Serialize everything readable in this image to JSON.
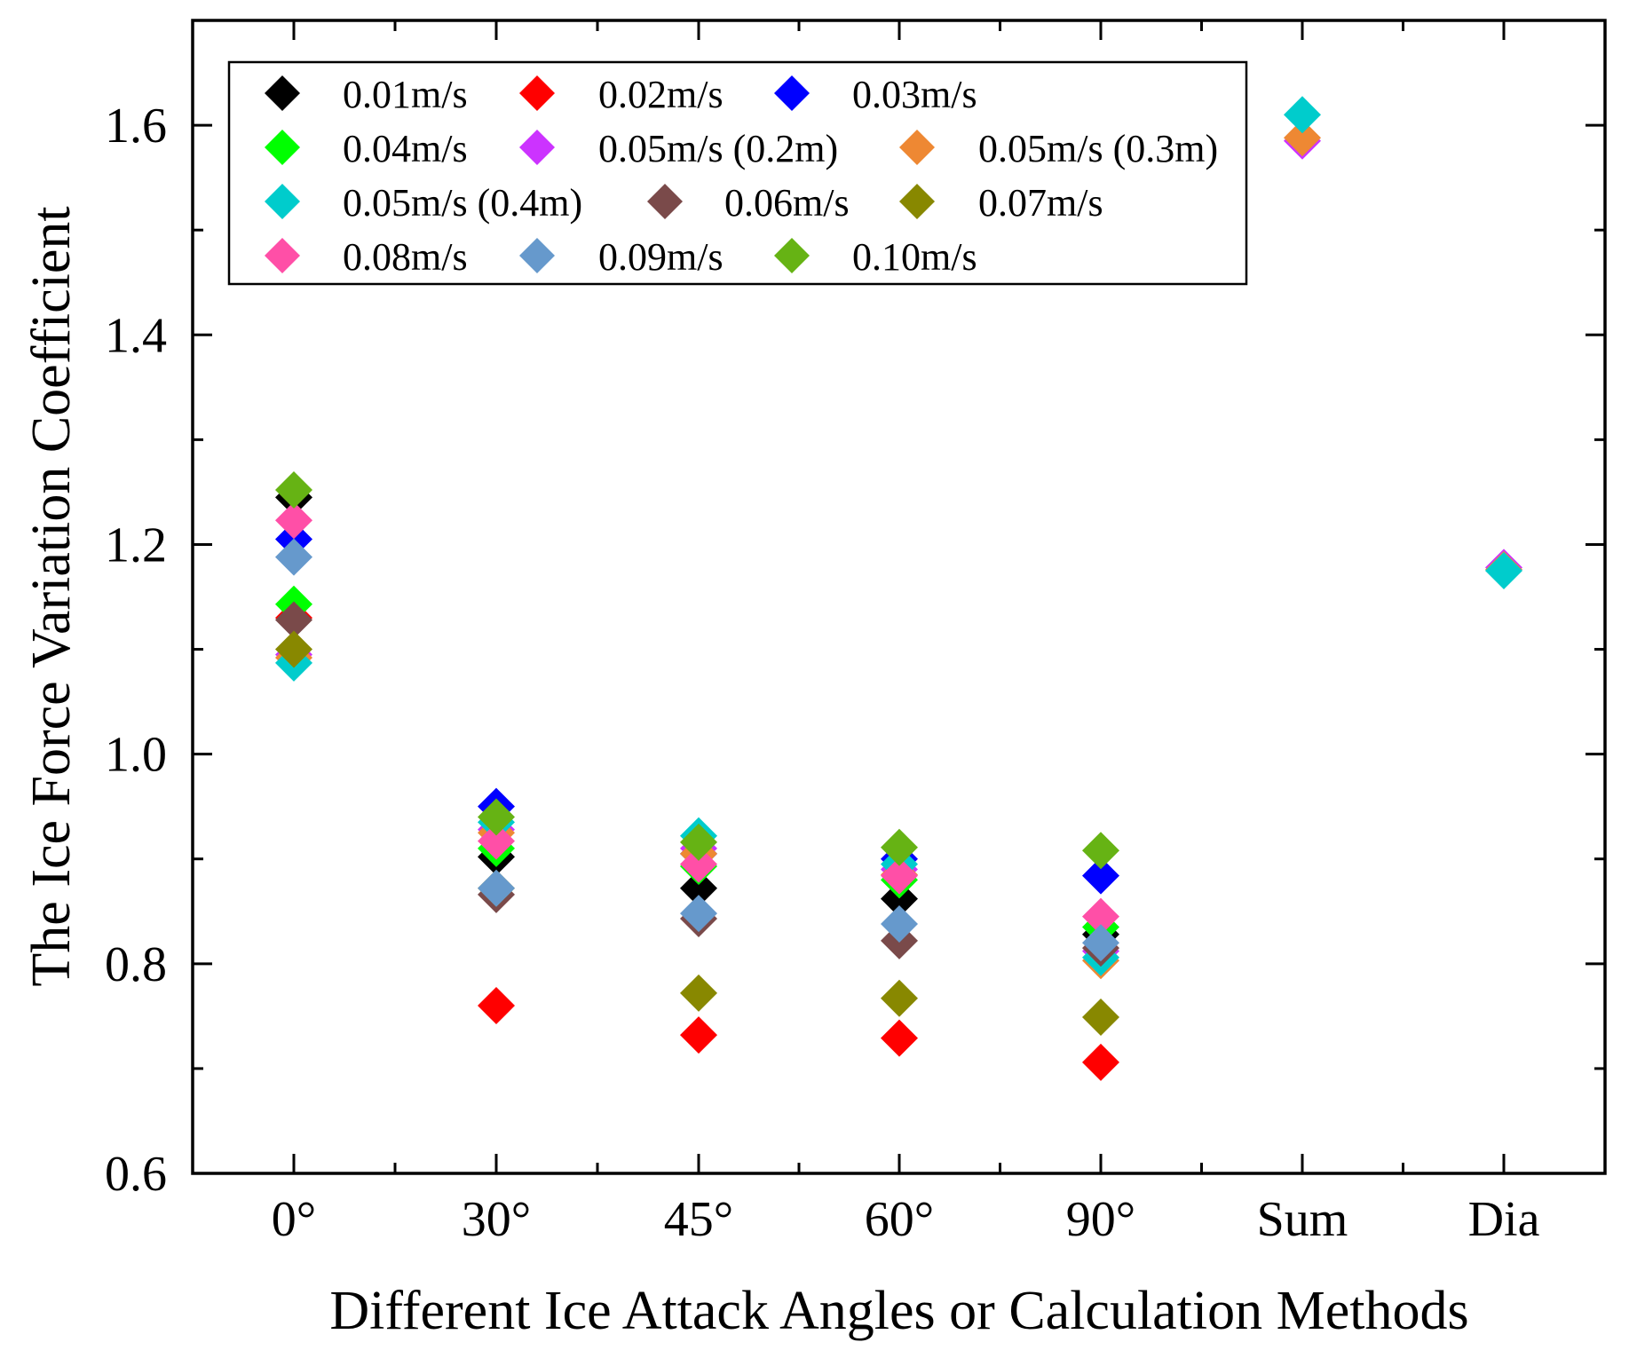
{
  "chart_data": {
    "type": "scatter",
    "ylabel": "The Ice Force Variation Coefficient",
    "xlabel": "Different Ice Attack Angles or Calculation Methods",
    "categories": [
      "0°",
      "30°",
      "45°",
      "60°",
      "90°",
      "Sum",
      "Dia"
    ],
    "ylim": [
      0.6,
      1.7
    ],
    "yticks": [
      "0.6",
      "0.8",
      "1.0",
      "1.2",
      "1.4",
      "1.6"
    ],
    "marker": "diamond",
    "legend_position": "top-left",
    "series": [
      {
        "name": "0.01m/s",
        "color": "#000000",
        "values": [
          1.245,
          0.902,
          0.872,
          0.862,
          0.828,
          null,
          null
        ]
      },
      {
        "name": "0.02m/s",
        "color": "#ff0000",
        "values": [
          1.13,
          0.76,
          0.732,
          0.729,
          0.706,
          null,
          null
        ]
      },
      {
        "name": "0.03m/s",
        "color": "#0000ff",
        "values": [
          1.205,
          0.95,
          0.905,
          0.9,
          0.884,
          null,
          null
        ]
      },
      {
        "name": "0.04m/s",
        "color": "#00ff00",
        "values": [
          1.143,
          0.91,
          0.893,
          0.88,
          0.835,
          null,
          null
        ]
      },
      {
        "name": "0.05m/s (0.2m)",
        "color": "#cc33ff",
        "values": [
          1.095,
          0.928,
          0.91,
          0.89,
          0.812,
          1.585,
          1.178
        ]
      },
      {
        "name": "0.05m/s (0.3m)",
        "color": "#ee8833",
        "values": [
          1.092,
          0.925,
          0.905,
          0.885,
          0.803,
          1.588,
          1.176
        ]
      },
      {
        "name": "0.05m/s (0.4m)",
        "color": "#00cccc",
        "values": [
          1.087,
          0.935,
          0.922,
          0.895,
          0.806,
          1.61,
          1.175
        ]
      },
      {
        "name": "0.06m/s",
        "color": "#7a4a4a",
        "values": [
          1.128,
          0.866,
          0.843,
          0.822,
          0.815,
          null,
          null
        ]
      },
      {
        "name": "0.07m/s",
        "color": "#888800",
        "values": [
          1.1,
          0.872,
          0.772,
          0.767,
          0.749,
          null,
          null
        ]
      },
      {
        "name": "0.08m/s",
        "color": "#ff4fa7",
        "values": [
          1.223,
          0.917,
          0.895,
          0.884,
          0.845,
          null,
          null
        ]
      },
      {
        "name": "0.09m/s",
        "color": "#6699cc",
        "values": [
          1.188,
          0.872,
          0.848,
          0.838,
          0.82,
          null,
          null
        ]
      },
      {
        "name": "0.10m/s",
        "color": "#66b314",
        "values": [
          1.252,
          0.94,
          0.916,
          0.911,
          0.908,
          null,
          null
        ]
      }
    ]
  }
}
